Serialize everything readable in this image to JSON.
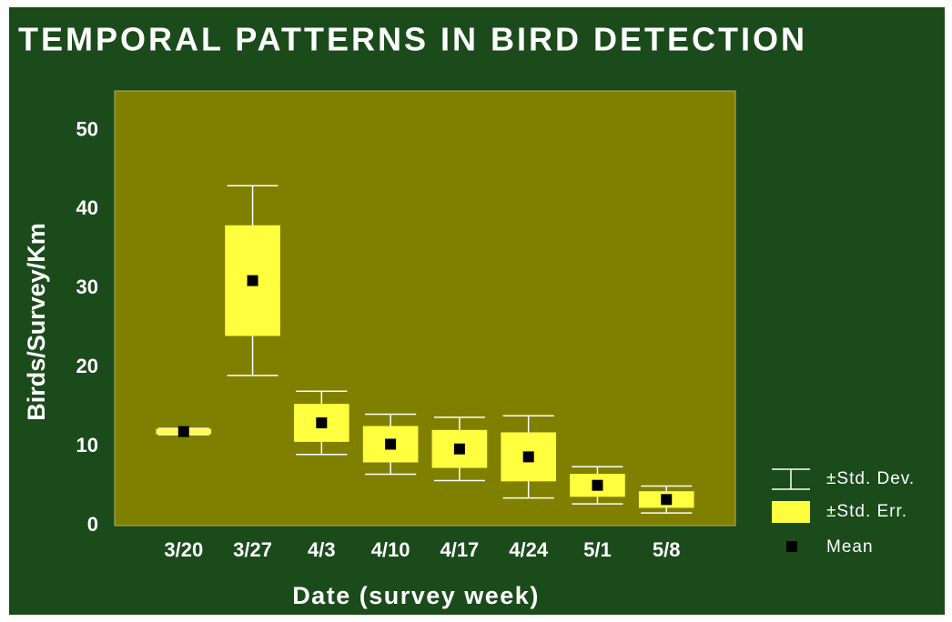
{
  "chart_data": {
    "type": "box",
    "title": "TEMPORAL PATTERNS IN BIRD DETECTION",
    "x_label": "Date (survey week)",
    "y_label": "Birds/Survey/Km",
    "categories": [
      "3/20",
      "3/27",
      "4/3",
      "4/10",
      "4/17",
      "4/24",
      "5/1",
      "5/8"
    ],
    "series": [
      {
        "name": "±Std. Dev.",
        "color": "#ffffff",
        "values": [
          0.4,
          12,
          4.0,
          3.8,
          4.0,
          5.2,
          2.35,
          1.7
        ]
      },
      {
        "name": "±Std. Err.",
        "color": "#ffff40",
        "values": [
          0.35,
          7.0,
          2.4,
          2.3,
          2.4,
          3.1,
          1.45,
          1.05
        ]
      },
      {
        "name": "Mean",
        "color": "#000000",
        "values": [
          11.9,
          31.0,
          13.0,
          10.3,
          9.7,
          8.7,
          5.1,
          3.3
        ]
      }
    ],
    "ylim": [
      0,
      55
    ],
    "yticks": [
      0,
      10,
      20,
      30,
      40,
      50
    ],
    "grid": false
  }
}
